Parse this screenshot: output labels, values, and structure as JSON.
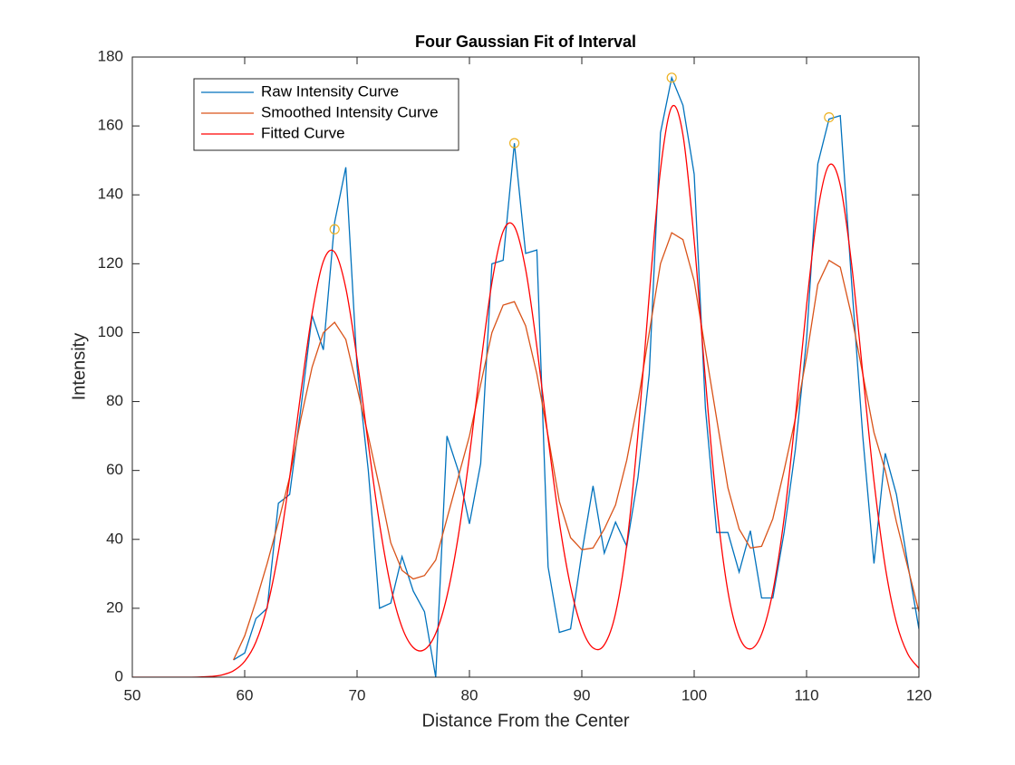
{
  "chart_data": {
    "type": "line",
    "title": "Four Gaussian Fit of Interval",
    "xlabel": "Distance From the Center",
    "ylabel": "Intensity",
    "xlim": [
      50,
      120
    ],
    "ylim": [
      0,
      180
    ],
    "xticks": [
      50,
      60,
      70,
      80,
      90,
      100,
      110,
      120
    ],
    "yticks": [
      0,
      20,
      40,
      60,
      80,
      100,
      120,
      140,
      160,
      180
    ],
    "grid": false,
    "legend": "upper-left",
    "series": [
      {
        "name": "Raw Intensity Curve",
        "color": "#0072bd",
        "smooth": false,
        "x": [
          59,
          60,
          61,
          62,
          63,
          64,
          65,
          66,
          67,
          68,
          69,
          70,
          71,
          72,
          73,
          74,
          75,
          76,
          77,
          78,
          79,
          80,
          81,
          82,
          83,
          84,
          85,
          86,
          87,
          88,
          89,
          90,
          91,
          92,
          93,
          94,
          95,
          96,
          97,
          98,
          99,
          100,
          101,
          102,
          103,
          104,
          105,
          106,
          107,
          108,
          109,
          110,
          111,
          112,
          113,
          114,
          115,
          116,
          117,
          118,
          119,
          120
        ],
        "values": [
          5,
          7,
          17,
          20,
          50.5,
          53,
          78,
          105,
          95,
          132,
          148,
          90,
          60,
          20,
          21.5,
          35,
          25,
          19,
          0,
          70,
          60,
          44.5,
          62,
          120,
          121,
          155,
          123,
          124,
          32,
          13,
          14,
          36,
          55.5,
          36,
          45,
          38,
          58,
          88,
          158,
          174,
          166,
          146,
          78,
          42,
          42,
          30.5,
          42.5,
          23,
          23,
          42,
          66,
          98,
          149,
          162,
          163,
          115,
          70,
          33,
          65,
          53,
          33,
          14
        ]
      },
      {
        "name": "Smoothed Intensity Curve",
        "color": "#d95319",
        "smooth": false,
        "x": [
          59,
          60,
          61,
          62,
          63,
          64,
          65,
          66,
          67,
          68,
          69,
          70,
          71,
          72,
          73,
          74,
          75,
          76,
          77,
          78,
          79,
          80,
          81,
          82,
          83,
          84,
          85,
          86,
          87,
          88,
          89,
          90,
          91,
          92,
          93,
          94,
          95,
          96,
          97,
          98,
          99,
          100,
          101,
          102,
          103,
          104,
          105,
          106,
          107,
          108,
          109,
          110,
          111,
          112,
          113,
          114,
          115,
          116,
          117,
          118,
          119,
          120
        ],
        "values": [
          5,
          12,
          22,
          33,
          45,
          58,
          75,
          90,
          100,
          103,
          98,
          84,
          70,
          55,
          39,
          31,
          28.5,
          29.5,
          34,
          46,
          58,
          70,
          85,
          100,
          108,
          109,
          102,
          88,
          70,
          51,
          40.5,
          37,
          37.5,
          43,
          50,
          63,
          80,
          100,
          120,
          129,
          127,
          115,
          95,
          75,
          55,
          43,
          37.5,
          38,
          46,
          60,
          75,
          93,
          114,
          121,
          119,
          105,
          88,
          71,
          60,
          45,
          32,
          19
        ]
      },
      {
        "name": "Fitted Curve",
        "color": "#ff0000",
        "smooth": true,
        "x": [
          50,
          51,
          52,
          53,
          54,
          55,
          56,
          57,
          58,
          59,
          60,
          61,
          62,
          63,
          64,
          65,
          66,
          67,
          68,
          69,
          70,
          71,
          72,
          73,
          74,
          75,
          76,
          77,
          78,
          79,
          80,
          81,
          82,
          83,
          84,
          85,
          86,
          87,
          88,
          89,
          90,
          91,
          92,
          93,
          94,
          95,
          96,
          97,
          98,
          99,
          100,
          101,
          102,
          103,
          104,
          105,
          106,
          107,
          108,
          109,
          110,
          111,
          112,
          113,
          114,
          115,
          116,
          117,
          118,
          119,
          120
        ],
        "values": [
          0,
          0,
          0,
          0,
          0,
          0,
          0.06,
          0.21,
          0.67,
          1.86,
          4.6,
          10.2,
          20.4,
          36.3,
          57.9,
          82.7,
          105.5,
          120.7,
          123.4,
          112.9,
          92.4,
          67.7,
          44.5,
          26.3,
          14.5,
          8.6,
          8.0,
          12.7,
          23.5,
          40.8,
          64.2,
          90.6,
          114.5,
          129.4,
          130.8,
          118.4,
          95.9,
          69.4,
          45.0,
          26.3,
          14.2,
          8.5,
          9.4,
          18.5,
          38.5,
          70.7,
          110.9,
          147.2,
          165.5,
          157.4,
          126.7,
          86.4,
          50.0,
          24.9,
          11.8,
          8.2,
          12.5,
          24.9,
          46.1,
          75.3,
          107.9,
          135.3,
          148.6,
          142.8,
          120.1,
          88.3,
          56.9,
          32.1,
          15.8,
          6.8,
          2.6
        ]
      }
    ],
    "peaks": {
      "color": "#edb120",
      "x": [
        68,
        84,
        98,
        112
      ],
      "values": [
        130,
        155,
        174,
        162.5
      ]
    }
  }
}
